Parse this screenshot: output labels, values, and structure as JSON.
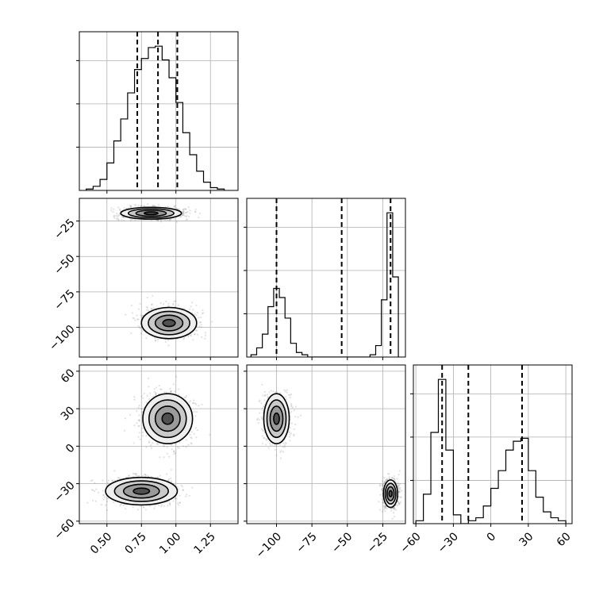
{
  "chart_data": {
    "type": "corner",
    "grid": true,
    "parameters": [
      {
        "range": [
          0.3,
          1.45
        ],
        "ticks": [
          0.5,
          0.75,
          1.0,
          1.25
        ],
        "tick_labels": [
          "0.50",
          "0.75",
          "1.00",
          "1.25"
        ],
        "quantiles": [
          0.72,
          0.87,
          1.01
        ],
        "hist": {
          "edges": [
            0.35,
            0.4,
            0.45,
            0.5,
            0.55,
            0.6,
            0.65,
            0.7,
            0.75,
            0.8,
            0.85,
            0.9,
            0.95,
            1.0,
            1.05,
            1.1,
            1.15,
            1.2,
            1.25,
            1.3,
            1.35
          ],
          "counts": [
            1,
            3,
            8,
            20,
            36,
            52,
            71,
            88,
            96,
            104,
            105,
            95,
            82,
            64,
            42,
            26,
            14,
            6,
            2,
            1
          ]
        }
      },
      {
        "range": [
          -121,
          -9
        ],
        "ticks": [
          -100,
          -75,
          -50,
          -25
        ],
        "tick_labels": [
          "−100",
          "−75",
          "−50",
          "−25"
        ],
        "quantiles": [
          -100,
          -54,
          -19.5
        ],
        "hist": {
          "edges": [
            -118,
            -114,
            -110,
            -106,
            -102,
            -98,
            -94,
            -90,
            -86,
            -82,
            -78,
            -74,
            -70,
            -66,
            -34,
            -30,
            -26,
            -22,
            -18,
            -14
          ],
          "counts": [
            1,
            4,
            10,
            22,
            30,
            26,
            17,
            6,
            2,
            1,
            0,
            0,
            0,
            0,
            1,
            5,
            25,
            63,
            35
          ]
        }
      },
      {
        "range": [
          -62,
          65
        ],
        "ticks": [
          -60,
          -30,
          0,
          30,
          60
        ],
        "tick_labels": [
          "−60",
          "−30",
          "0",
          "30",
          "60"
        ],
        "quantiles": [
          -39,
          -18,
          25
        ],
        "hist": {
          "edges": [
            -60,
            -54,
            -48,
            -42,
            -36,
            -30,
            -24,
            -18,
            -12,
            -6,
            0,
            6,
            12,
            18,
            24,
            30,
            36,
            42,
            48,
            54,
            60
          ],
          "counts": [
            1,
            10,
            31,
            49,
            25,
            3,
            0,
            1,
            2,
            6,
            12,
            18,
            25,
            28,
            29,
            18,
            9,
            4,
            2,
            1
          ]
        }
      }
    ],
    "pairs": [
      {
        "x": 0,
        "y": 1,
        "modes": [
          {
            "cx": 0.82,
            "cy": -19.5,
            "sx": 0.11,
            "sy": 2.1,
            "n": 1100
          },
          {
            "cx": 0.95,
            "cy": -97,
            "sx": 0.1,
            "sy": 5.5,
            "n": 900
          }
        ]
      },
      {
        "x": 0,
        "y": 2,
        "modes": [
          {
            "cx": 0.94,
            "cy": 22,
            "sx": 0.09,
            "sy": 10,
            "n": 900
          },
          {
            "cx": 0.75,
            "cy": -36,
            "sx": 0.13,
            "sy": 5.5,
            "n": 1100
          }
        ]
      },
      {
        "x": 1,
        "y": 2,
        "modes": [
          {
            "cx": -100,
            "cy": 22,
            "sx": 4.5,
            "sy": 10,
            "n": 900
          },
          {
            "cx": -19.5,
            "cy": -38,
            "sx": 2.5,
            "sy": 5.5,
            "n": 1100
          }
        ]
      }
    ]
  }
}
